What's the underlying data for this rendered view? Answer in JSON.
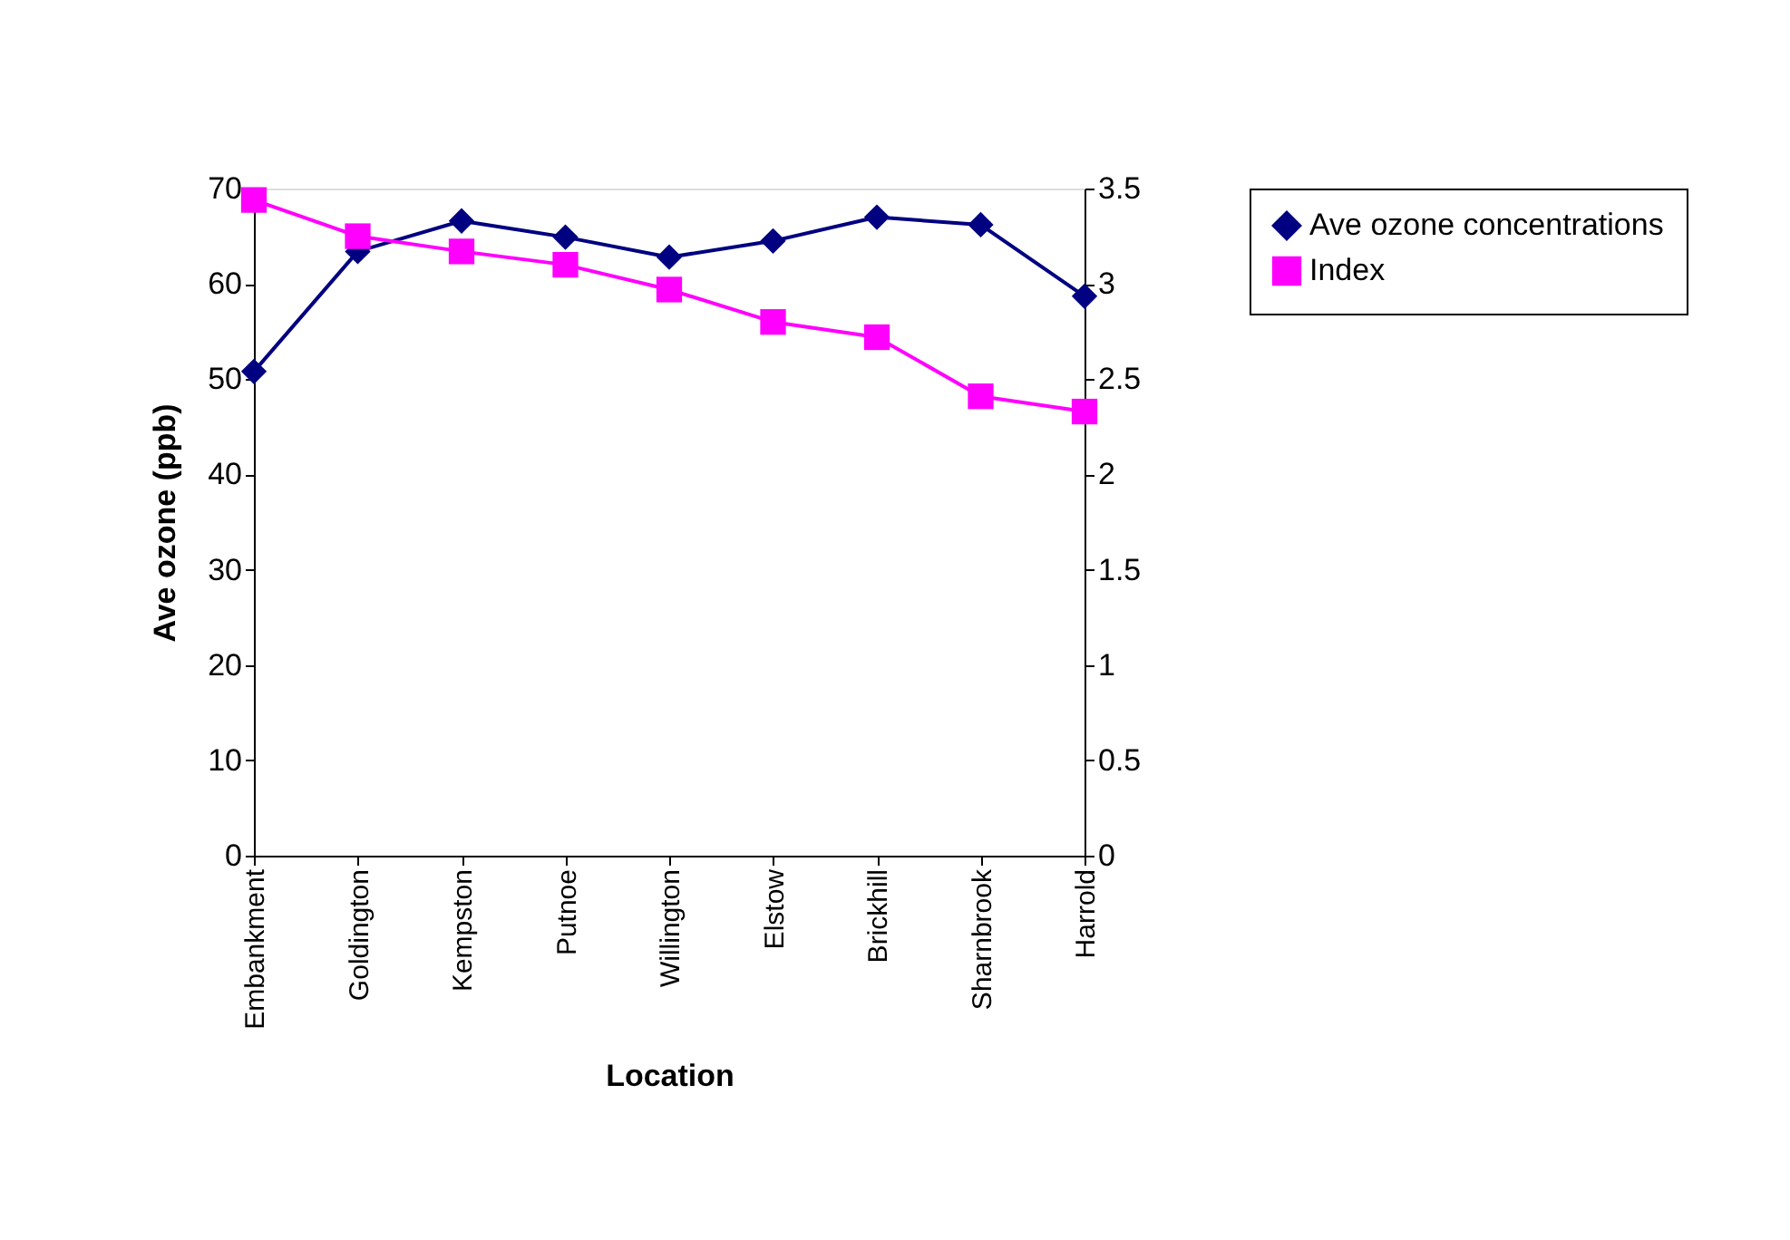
{
  "chart_data": {
    "type": "line",
    "xlabel": "Location",
    "ylabel": "Ave ozone (ppb)",
    "categories": [
      "Embankment",
      "Goldington",
      "Kempston",
      "Putnoe",
      "Willington",
      "Elstow",
      "Brickhill",
      "Sharnbrook",
      "Harrold"
    ],
    "series": [
      {
        "name": "Ave ozone concentrations",
        "color": "#000080",
        "marker": "diamond",
        "values": [
          50.8,
          63.4,
          66.6,
          64.9,
          62.8,
          64.5,
          67.0,
          66.2,
          58.7
        ]
      },
      {
        "name": "Index",
        "color": "#ff00ff",
        "marker": "square",
        "axis": "y2",
        "values": [
          3.44,
          3.25,
          3.17,
          3.1,
          2.97,
          2.8,
          2.72,
          2.41,
          2.33
        ]
      }
    ],
    "ylim": [
      0,
      70
    ],
    "yticks": [
      0,
      10,
      20,
      30,
      40,
      50,
      60,
      70
    ],
    "y2lim": [
      0,
      3.5
    ],
    "y2ticks": [
      0,
      0.5,
      1,
      1.5,
      2,
      2.5,
      3,
      3.5
    ],
    "grid": false,
    "legend": "right",
    "line_style": "solid"
  }
}
